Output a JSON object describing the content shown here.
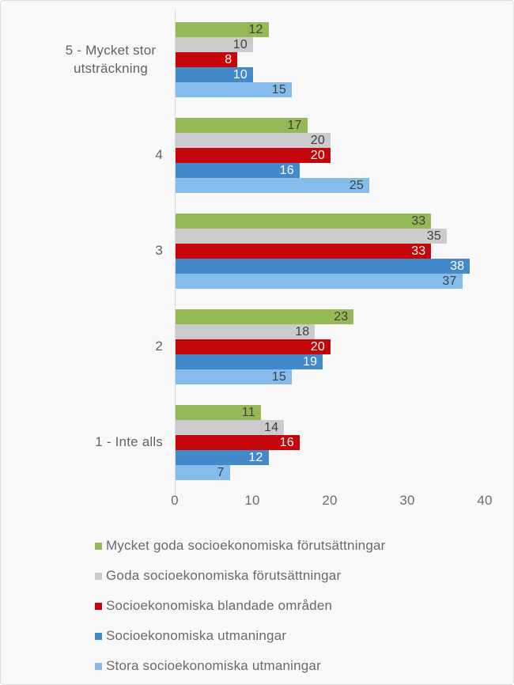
{
  "chart_data": {
    "type": "bar",
    "orientation": "horizontal",
    "title": "",
    "xlabel": "",
    "ylabel": "",
    "xlim": [
      0,
      40
    ],
    "grid": false,
    "legend_position": "bottom-left",
    "bar_label_position": "inside-end",
    "categories": [
      "5 - Mycket stor utsträckning",
      "4",
      "3",
      "2",
      "1 - Inte alls"
    ],
    "series": [
      {
        "name": "Mycket goda socioekonomiska förutsättningar",
        "color": "#95B956",
        "value_label_color": "#404040",
        "values": [
          12,
          17,
          33,
          23,
          11
        ]
      },
      {
        "name": "Goda socioekonomiska förutsättningar",
        "color": "#CBCBCE",
        "value_label_color": "#404040",
        "values": [
          10,
          20,
          35,
          18,
          14
        ]
      },
      {
        "name": "Socioekonomiska blandade områden",
        "color": "#C40509",
        "value_label_color": "#FFFFFF",
        "values": [
          8,
          20,
          33,
          20,
          16
        ]
      },
      {
        "name": "Socioekonomiska utmaningar",
        "color": "#4489C9",
        "value_label_color": "#FFFFFF",
        "values": [
          10,
          16,
          38,
          19,
          12
        ]
      },
      {
        "name": "Stora socioekonomiska utmaningar",
        "color": "#86BCEB",
        "value_label_color": "#404040",
        "values": [
          15,
          25,
          37,
          15,
          7
        ]
      }
    ],
    "x_axis": {
      "ticks": [
        0,
        10,
        20,
        30,
        40
      ]
    },
    "colors": {
      "background": "#f8f8f8",
      "border": "#dcdcdc",
      "axis_line": "#d8d8d8",
      "axis_text": "#6e6e6e",
      "category_text": "#636363",
      "legend_text": "#6a6a6a"
    }
  }
}
